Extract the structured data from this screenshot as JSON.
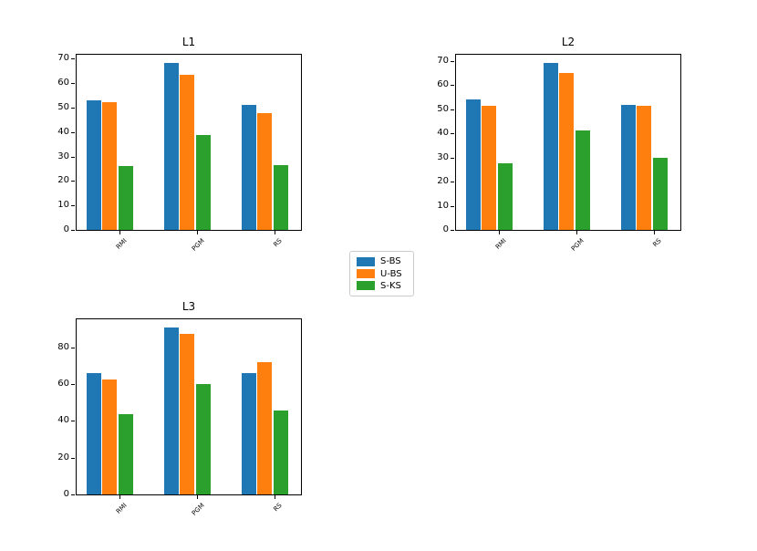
{
  "figure": {
    "background": "#ffffff",
    "axis_color": "#000000"
  },
  "legend": {
    "position": "figure-center",
    "items": [
      {
        "label": "S-BS",
        "color": "#1f77b4"
      },
      {
        "label": "U-BS",
        "color": "#ff7f0e"
      },
      {
        "label": "S-KS",
        "color": "#2ca02c"
      }
    ]
  },
  "chart_data": [
    {
      "type": "bar",
      "title": "L1",
      "categories": [
        "RMI",
        "PGM",
        "RS"
      ],
      "series": [
        {
          "name": "S-BS",
          "color": "#1f77b4",
          "values": [
            53.0,
            68.2,
            51.2
          ]
        },
        {
          "name": "U-BS",
          "color": "#ff7f0e",
          "values": [
            52.4,
            63.3,
            47.6
          ]
        },
        {
          "name": "S-KS",
          "color": "#2ca02c",
          "values": [
            26.2,
            38.7,
            26.4
          ]
        }
      ],
      "ylim": [
        0,
        71.6
      ],
      "yticks": [
        0,
        10,
        20,
        30,
        40,
        50,
        60,
        70
      ],
      "grid": false,
      "xlabel": "",
      "ylabel": ""
    },
    {
      "type": "bar",
      "title": "L2",
      "categories": [
        "RMI",
        "PGM",
        "RS"
      ],
      "series": [
        {
          "name": "S-BS",
          "color": "#1f77b4",
          "values": [
            54.2,
            69.0,
            51.6
          ]
        },
        {
          "name": "U-BS",
          "color": "#ff7f0e",
          "values": [
            51.5,
            65.0,
            51.2
          ]
        },
        {
          "name": "S-KS",
          "color": "#2ca02c",
          "values": [
            27.4,
            41.3,
            29.7
          ]
        }
      ],
      "ylim": [
        0,
        72.5
      ],
      "yticks": [
        0,
        10,
        20,
        30,
        40,
        50,
        60,
        70
      ],
      "grid": false,
      "xlabel": "",
      "ylabel": ""
    },
    {
      "type": "bar",
      "title": "L3",
      "categories": [
        "RMI",
        "PGM",
        "RS"
      ],
      "series": [
        {
          "name": "S-BS",
          "color": "#1f77b4",
          "values": [
            66.0,
            90.6,
            65.8
          ]
        },
        {
          "name": "U-BS",
          "color": "#ff7f0e",
          "values": [
            62.3,
            87.2,
            72.0
          ]
        },
        {
          "name": "S-KS",
          "color": "#2ca02c",
          "values": [
            43.8,
            59.8,
            45.6
          ]
        }
      ],
      "ylim": [
        0,
        95.1
      ],
      "yticks": [
        0,
        20,
        40,
        60,
        80
      ],
      "grid": false,
      "xlabel": "",
      "ylabel": ""
    }
  ]
}
